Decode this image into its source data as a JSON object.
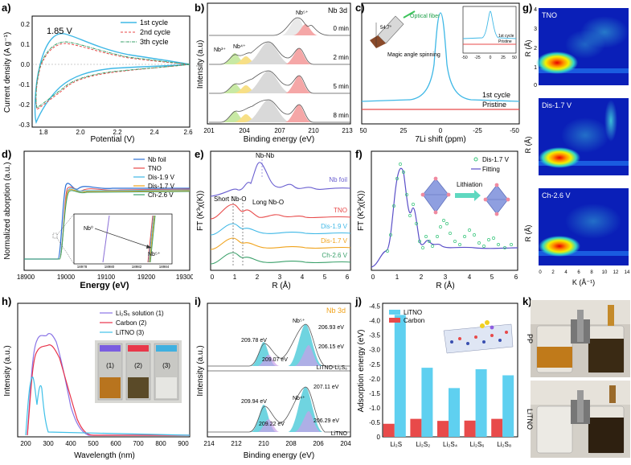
{
  "panels": {
    "a": {
      "letter": "a)",
      "ylabel": "Current density (A g⁻¹)",
      "xlabel": "Potential (V)",
      "annotation": "1.85 V",
      "legend": [
        "1st cycle",
        "2nd cycle",
        "3th cycle"
      ],
      "xticks": [
        "1.8",
        "2.0",
        "2.2",
        "2.4",
        "2.6"
      ],
      "yticks": [
        "0.2",
        "0.1",
        "0.0",
        "-0.1",
        "-0.2",
        "-0.3"
      ]
    },
    "b": {
      "letter": "b)",
      "ylabel": "Intensity (a.u)",
      "xlabel": "Binding energy (eV)",
      "title": "Nb 3d",
      "times": [
        "0 min",
        "2 min",
        "5 min",
        "8 min"
      ],
      "labels": [
        "Nb⁵⁺",
        "Nb³⁺",
        "Nb⁴⁺"
      ],
      "xticks": [
        "201",
        "204",
        "207",
        "210",
        "213"
      ]
    },
    "c": {
      "letter": "c)",
      "xlabel": "7Li shift (ppm)",
      "curves": [
        "1st cycle",
        "Pristine"
      ],
      "inset_labels": [
        "Optical fiber",
        "Magic angle spinning"
      ],
      "inset_angle": "54.7°",
      "inset_legend": [
        "1st cycle",
        "Pristine"
      ],
      "inset_xticks": [
        "-50",
        "-25",
        "0",
        "25",
        "50"
      ],
      "xticks": [
        "50",
        "25",
        "0",
        "-25",
        "-50"
      ]
    },
    "d": {
      "letter": "d)",
      "ylabel": "Normalized aborption (a.u.)",
      "xlabel": "Energy (eV)",
      "legend": [
        "Nb foil",
        "TNO",
        "Dis-1.9 V",
        "Dis-1.7 V",
        "Ch-2.6 V"
      ],
      "inset_labels": [
        "Nb⁰",
        "Nb⁵⁺"
      ],
      "inset_xticks": [
        "18978",
        "18980",
        "18982",
        "18984"
      ],
      "xticks": [
        "18900",
        "19000",
        "19100",
        "19200",
        "19300"
      ]
    },
    "e": {
      "letter": "e)",
      "ylabel": "FT (K³χ(K))",
      "xlabel": "R (Å)",
      "annotations": [
        "Nb-Nb",
        "Short Nb-O",
        "Long Nb-O"
      ],
      "curves": [
        "Nb foil",
        "TNO",
        "Dis-1.9 V",
        "Dis-1.7 V",
        "Ch-2.6 V"
      ],
      "xticks": [
        "0",
        "1",
        "2",
        "3",
        "4",
        "5",
        "6"
      ]
    },
    "f": {
      "letter": "f)",
      "ylabel": "FT (K³χ(K))",
      "xlabel": "R (Å)",
      "legend": [
        "Dis-1.7 V",
        "Fitting"
      ],
      "annotation": "Lithiation",
      "xticks": [
        "0",
        "1",
        "2",
        "3",
        "4",
        "5",
        "6"
      ]
    },
    "g": {
      "letter": "g)",
      "ylabel": "R (Å)",
      "xlabel": "K (Å⁻¹)",
      "maps": [
        "TNO",
        "Dis-1.7 V",
        "Ch-2.6 V"
      ],
      "yticks": [
        "4",
        "3",
        "2",
        "1",
        "0"
      ],
      "xticks": [
        "0",
        "2",
        "4",
        "6",
        "8",
        "10",
        "12",
        "14"
      ]
    },
    "h": {
      "letter": "h)",
      "ylabel": "Intensity (a.u.)",
      "xlabel": "Wavelength (nm)",
      "legend": [
        "Li₂S₆ solution (1)",
        "Carbon (2)",
        "LiTNO (3)"
      ],
      "vials": [
        "(1)",
        "(2)",
        "(3)"
      ],
      "xticks": [
        "200",
        "300",
        "400",
        "500",
        "600",
        "700",
        "800",
        "900"
      ]
    },
    "i": {
      "letter": "i)",
      "ylabel": "Intensity (a.u.)",
      "xlabel": "Binding energy (eV)",
      "title": "Nb 3d",
      "top_label": "LiTNO-Li₂S₆",
      "bottom_label": "LiTNO",
      "top_peaks": [
        "209.78 eV",
        "Nb⁵⁺",
        "206.93 eV",
        "209.07 eV",
        "206.15 eV"
      ],
      "bottom_peaks": [
        "209.94 eV",
        "Nb⁴⁺",
        "207.11 eV",
        "209.22 eV",
        "206.29 eV"
      ],
      "xticks": [
        "214",
        "212",
        "210",
        "208",
        "206",
        "204"
      ]
    },
    "j": {
      "letter": "j)",
      "ylabel": "Adsorption energy (eV)",
      "legend": [
        "LiTNO",
        "Carbon"
      ],
      "yticks": [
        "0",
        "-0.5",
        "-1.0",
        "-1.5",
        "-2.0",
        "-2.5",
        "-3.0",
        "-3.5",
        "-4.0",
        "-4.5"
      ]
    },
    "k": {
      "letter": "k)",
      "labels": [
        "PP",
        "LiTNO"
      ]
    }
  },
  "chart_data": [
    {
      "type": "bar",
      "id": "j",
      "title": "",
      "ylabel": "Adsorption energy (eV)",
      "categories": [
        "Li₂S",
        "Li₂S₂",
        "Li₂S₄",
        "Li₂S₆",
        "Li₂S₈"
      ],
      "series": [
        {
          "name": "LiTNO",
          "values": [
            -4.2,
            -2.38,
            -1.68,
            -2.33,
            -2.12
          ]
        },
        {
          "name": "Carbon",
          "values": [
            -0.45,
            -0.62,
            -0.55,
            -0.56,
            -0.62
          ]
        }
      ],
      "ylim": [
        0,
        -4.6
      ]
    }
  ]
}
